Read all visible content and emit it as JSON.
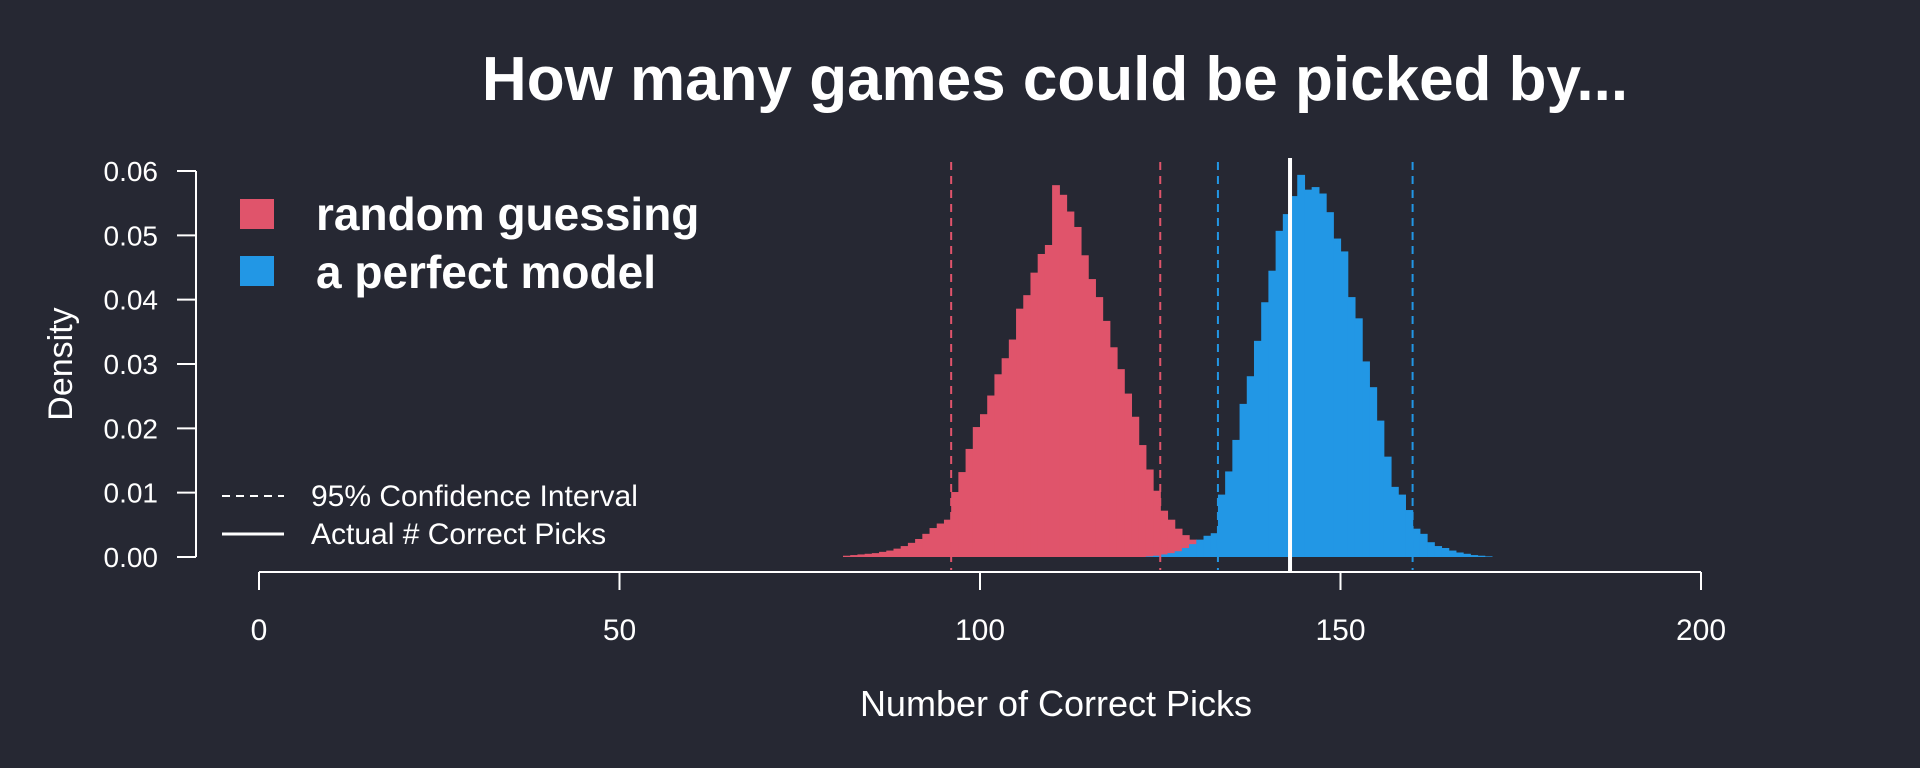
{
  "chart_data": {
    "type": "histogram",
    "title": "How many games could be picked by...",
    "xlabel": "Number of Correct Picks",
    "ylabel": "Density",
    "xlim": [
      0,
      200
    ],
    "ylim": [
      0,
      0.06
    ],
    "x_ticks": [
      0,
      50,
      100,
      150,
      200
    ],
    "y_ticks": [
      "0.00",
      "0.01",
      "0.02",
      "0.03",
      "0.04",
      "0.05",
      "0.06"
    ],
    "grid": false,
    "bin_width": 1,
    "background": "#262833",
    "series": [
      {
        "name": "random guessing",
        "color": "#E0546B",
        "bins_start": [
          81,
          82,
          83,
          84,
          85,
          86,
          87,
          88,
          89,
          90,
          91,
          92,
          93,
          94,
          95,
          96,
          97,
          98,
          99,
          100,
          101,
          102,
          103,
          104,
          105,
          106,
          107,
          108,
          109,
          110,
          111,
          112,
          113,
          114,
          115,
          116,
          117,
          118,
          119,
          120,
          121,
          122,
          123,
          124,
          125,
          126,
          127,
          128,
          129,
          130,
          131,
          132,
          133,
          134,
          135,
          136,
          137,
          138
        ],
        "density": [
          0.0002,
          0.0003,
          0.0004,
          0.0005,
          0.0006,
          0.0008,
          0.001,
          0.0013,
          0.0017,
          0.0022,
          0.0028,
          0.0036,
          0.0045,
          0.0052,
          0.0058,
          0.0101,
          0.0132,
          0.0168,
          0.0202,
          0.0222,
          0.0251,
          0.0284,
          0.0309,
          0.0338,
          0.0386,
          0.0407,
          0.0442,
          0.0471,
          0.0485,
          0.0578,
          0.0563,
          0.0537,
          0.0513,
          0.0469,
          0.0432,
          0.0404,
          0.0367,
          0.0326,
          0.0292,
          0.0254,
          0.0218,
          0.0174,
          0.0136,
          0.0103,
          0.0072,
          0.0058,
          0.0044,
          0.0034,
          0.0027,
          0.0021,
          0.0015,
          0.0011,
          0.0008,
          0.0005,
          0.0003,
          0.0002,
          0.0001,
          0.0001
        ]
      },
      {
        "name": "a perfect model",
        "color": "#2297E5",
        "bins_start": [
          123,
          124,
          125,
          126,
          127,
          128,
          129,
          130,
          131,
          132,
          133,
          134,
          135,
          136,
          137,
          138,
          139,
          140,
          141,
          142,
          143,
          144,
          145,
          146,
          147,
          148,
          149,
          150,
          151,
          152,
          153,
          154,
          155,
          156,
          157,
          158,
          159,
          160,
          161,
          162,
          163,
          164,
          165,
          166,
          167,
          168,
          169,
          170
        ],
        "density": [
          0.0001,
          0.0002,
          0.0004,
          0.0006,
          0.0009,
          0.0014,
          0.002,
          0.0027,
          0.0033,
          0.0037,
          0.0097,
          0.0133,
          0.0182,
          0.0238,
          0.0281,
          0.0336,
          0.0396,
          0.0445,
          0.0507,
          0.0533,
          0.0561,
          0.0594,
          0.0571,
          0.0575,
          0.0565,
          0.0536,
          0.0495,
          0.0475,
          0.0404,
          0.0371,
          0.0304,
          0.0264,
          0.0212,
          0.0156,
          0.0109,
          0.0097,
          0.0073,
          0.0044,
          0.0036,
          0.0023,
          0.0017,
          0.0014,
          0.001,
          0.0007,
          0.0005,
          0.0003,
          0.0002,
          0.0001
        ]
      }
    ],
    "ci_lines": [
      {
        "series": "random guessing",
        "x": 96,
        "color": "#E0546B"
      },
      {
        "series": "random guessing",
        "x": 125,
        "color": "#E0546B"
      },
      {
        "series": "a perfect model",
        "x": 133,
        "color": "#2297E5"
      },
      {
        "series": "a perfect model",
        "x": 160,
        "color": "#2297E5"
      }
    ],
    "actual_line": {
      "x": 143,
      "color": "#ffffff"
    },
    "legend_main": {
      "position": "top-left",
      "entries": [
        {
          "label": "random guessing",
          "color": "#E0546B"
        },
        {
          "label": "a perfect model",
          "color": "#2297E5"
        }
      ]
    },
    "legend_lines": {
      "position": "bottom-left",
      "entries": [
        {
          "label": "95% Confidence Interval",
          "style": "dashed",
          "color": "#ffffff"
        },
        {
          "label": "Actual # Correct Picks",
          "style": "solid",
          "color": "#ffffff"
        }
      ]
    }
  }
}
